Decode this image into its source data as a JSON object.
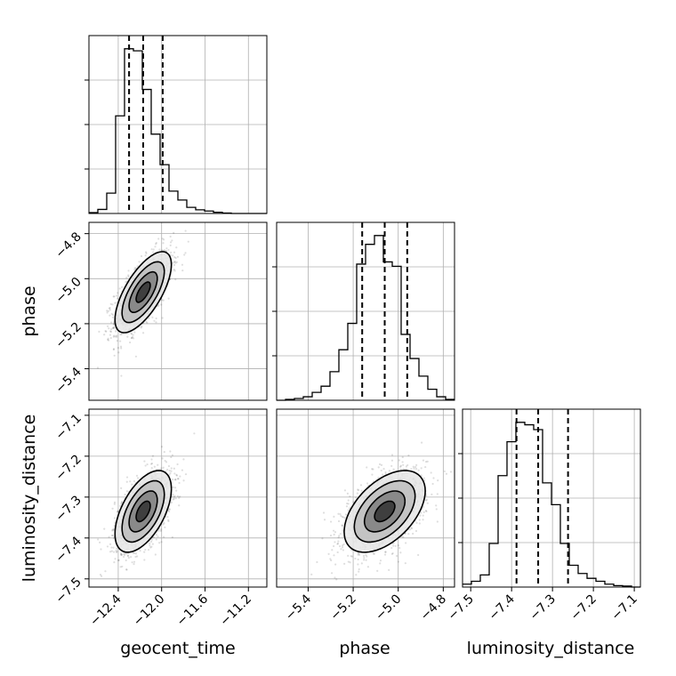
{
  "chart_data": {
    "type": "corner",
    "parameters": [
      "geocent_time",
      "phase",
      "luminosity_distance"
    ],
    "axis_labels": {
      "geocent_time": "geocent_time",
      "phase": "phase",
      "luminosity_distance": "luminosity_distance"
    },
    "ranges": {
      "geocent_time": [
        -12.67,
        -11.03
      ],
      "phase": [
        -5.54,
        -4.75
      ],
      "luminosity_distance": [
        -7.52,
        -7.085
      ]
    },
    "ticks": {
      "geocent_time": [
        "-12.4",
        "-12.0",
        "-11.6",
        "-11.2"
      ],
      "phase": [
        "-5.4",
        "-5.2",
        "-5.0",
        "-4.8"
      ],
      "luminosity_distance": [
        "-7.5",
        "-7.4",
        "-7.3",
        "-7.2",
        "-7.1"
      ]
    },
    "quantiles": {
      "geocent_time": [
        -12.3,
        -12.17,
        -11.99
      ],
      "phase": [
        -5.16,
        -5.06,
        -4.96
      ],
      "luminosity_distance": [
        -7.388,
        -7.335,
        -7.262
      ]
    },
    "histograms": [
      {
        "parameter": "geocent_time",
        "bin_edges": [
          -12.67,
          -12.588,
          -12.506,
          -12.424,
          -12.342,
          -12.26,
          -12.178,
          -12.096,
          -12.014,
          -11.932,
          -11.85,
          -11.768,
          -11.686,
          -11.604,
          -11.522,
          -11.44,
          -11.358,
          -11.276,
          -11.194,
          -11.112,
          -11.03
        ],
        "counts": [
          2,
          10,
          50,
          240,
          405,
          400,
          305,
          195,
          120,
          55,
          33,
          15,
          9,
          6,
          3,
          1,
          0,
          0,
          0,
          0
        ]
      },
      {
        "parameter": "phase",
        "bin_edges": [
          -5.54,
          -5.5005,
          -5.461,
          -5.4215,
          -5.382,
          -5.3425,
          -5.303,
          -5.2635,
          -5.224,
          -5.1845,
          -5.145,
          -5.1055,
          -5.066,
          -5.0265,
          -4.987,
          -4.9475,
          -4.908,
          -4.8685,
          -4.829,
          -4.7895,
          -4.75
        ],
        "counts": [
          0,
          2,
          4,
          8,
          18,
          32,
          65,
          115,
          175,
          310,
          355,
          375,
          315,
          305,
          150,
          95,
          55,
          25,
          8,
          2
        ]
      },
      {
        "parameter": "luminosity_distance",
        "bin_edges": [
          -7.52,
          -7.49825,
          -7.4765,
          -7.45475,
          -7.433,
          -7.41125,
          -7.3895,
          -7.36775,
          -7.346,
          -7.32425,
          -7.3025,
          -7.28075,
          -7.259,
          -7.23725,
          -7.2155,
          -7.19375,
          -7.172,
          -7.15025,
          -7.1285,
          -7.10675,
          -7.085
        ],
        "counts": [
          6,
          12,
          25,
          90,
          230,
          300,
          340,
          335,
          325,
          215,
          170,
          90,
          45,
          28,
          18,
          12,
          6,
          3,
          2,
          0
        ]
      }
    ],
    "joint_panels": [
      {
        "x": "geocent_time",
        "y": "phase",
        "mean": [
          -12.17,
          -5.06
        ],
        "sd": [
          0.13,
          0.09
        ],
        "correlation": 0.68
      },
      {
        "x": "geocent_time",
        "y": "luminosity_distance",
        "mean": [
          -12.17,
          -7.335
        ],
        "sd": [
          0.13,
          0.05
        ],
        "correlation": 0.55
      },
      {
        "x": "phase",
        "y": "luminosity_distance",
        "mean": [
          -5.06,
          -7.335
        ],
        "sd": [
          0.09,
          0.05
        ],
        "correlation": 0.5
      }
    ],
    "contour_levels_sigma": [
      0.5,
      1.0,
      1.5,
      2.0
    ],
    "grid": true
  }
}
